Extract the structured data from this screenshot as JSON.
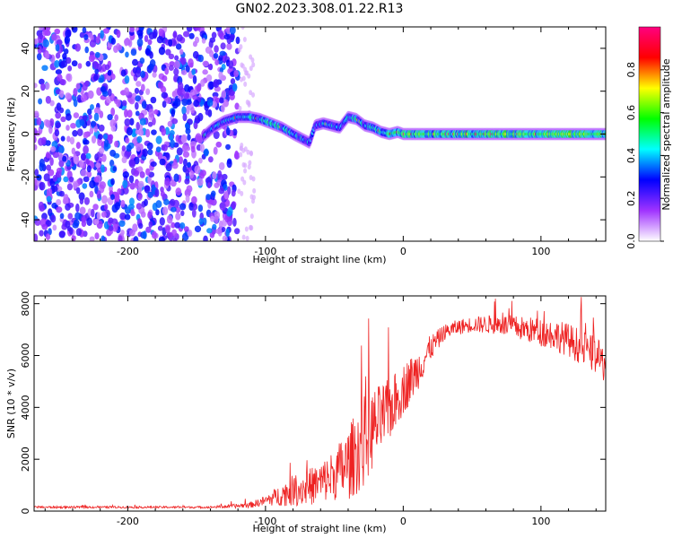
{
  "title": "GN02.2023.308.01.22.R13",
  "chart_data": [
    {
      "type": "heatmap",
      "xlabel": "Height of straight line (km)",
      "ylabel": "Frequency (Hz)",
      "xlim": [
        -268,
        147
      ],
      "ylim": [
        -50,
        50
      ],
      "xticks": [
        -200,
        -100,
        0,
        100
      ],
      "yticks": [
        -40,
        -20,
        0,
        20,
        40
      ],
      "colorbar": {
        "label": "Normalized spectral amplitude",
        "range": [
          0,
          1
        ],
        "ticks": [
          0.0,
          0.2,
          0.4,
          0.6,
          0.8
        ],
        "colors": [
          "#ffffff",
          "#a033ff",
          "#0000ff",
          "#00ffff",
          "#00ff00",
          "#ffff00",
          "#ff0000",
          "#ff0080"
        ]
      },
      "noise_region_x": [
        -268,
        -120
      ],
      "trace": {
        "x": [
          -145,
          -138,
          -130,
          -120,
          -112,
          -104,
          -96,
          -88,
          -80,
          -74,
          -68,
          -64,
          -58,
          -52,
          -46,
          -40,
          -34,
          -28,
          -22,
          -16,
          -10,
          -4,
          0,
          20,
          50,
          80,
          110,
          147
        ],
        "frequency": [
          -1,
          3,
          6,
          8,
          8,
          7,
          5,
          3,
          0,
          -2,
          -4,
          4,
          5,
          4,
          3,
          8,
          7,
          4,
          3,
          1,
          0,
          1,
          0,
          0,
          0,
          0,
          0,
          0
        ],
        "amplitude": [
          0.3,
          0.35,
          0.4,
          0.4,
          0.42,
          0.42,
          0.45,
          0.45,
          0.4,
          0.4,
          0.35,
          0.35,
          0.4,
          0.4,
          0.35,
          0.42,
          0.45,
          0.4,
          0.45,
          0.5,
          0.5,
          0.5,
          0.55,
          0.55,
          0.58,
          0.6,
          0.62,
          0.6
        ]
      }
    },
    {
      "type": "line",
      "xlabel": "Height of straight line (km)",
      "ylabel": "SNR (10 * v/v)",
      "xlim": [
        -268,
        147
      ],
      "ylim": [
        0,
        8300
      ],
      "xticks": [
        -200,
        -100,
        0,
        100
      ],
      "yticks": [
        0,
        2000,
        4000,
        6000,
        8000
      ],
      "color": "#ee2222",
      "envelope": {
        "x": [
          -268,
          -200,
          -140,
          -120,
          -110,
          -100,
          -90,
          -80,
          -70,
          -60,
          -50,
          -40,
          -30,
          -20,
          -10,
          0,
          10,
          20,
          30,
          40,
          50,
          60,
          70,
          80,
          90,
          100,
          110,
          120,
          130,
          140,
          147
        ],
        "mean": [
          150,
          150,
          150,
          200,
          250,
          400,
          600,
          800,
          900,
          1100,
          1400,
          1800,
          2600,
          3300,
          3900,
          4700,
          5400,
          6300,
          6900,
          7100,
          7200,
          7200,
          7200,
          7100,
          7000,
          6900,
          6800,
          6600,
          6300,
          6000,
          5600
        ],
        "spread": [
          40,
          40,
          40,
          80,
          120,
          200,
          400,
          600,
          700,
          800,
          1000,
          1400,
          1800,
          1500,
          1200,
          1000,
          800,
          500,
          300,
          300,
          300,
          350,
          400,
          450,
          500,
          550,
          600,
          650,
          700,
          700,
          700
        ]
      }
    }
  ]
}
